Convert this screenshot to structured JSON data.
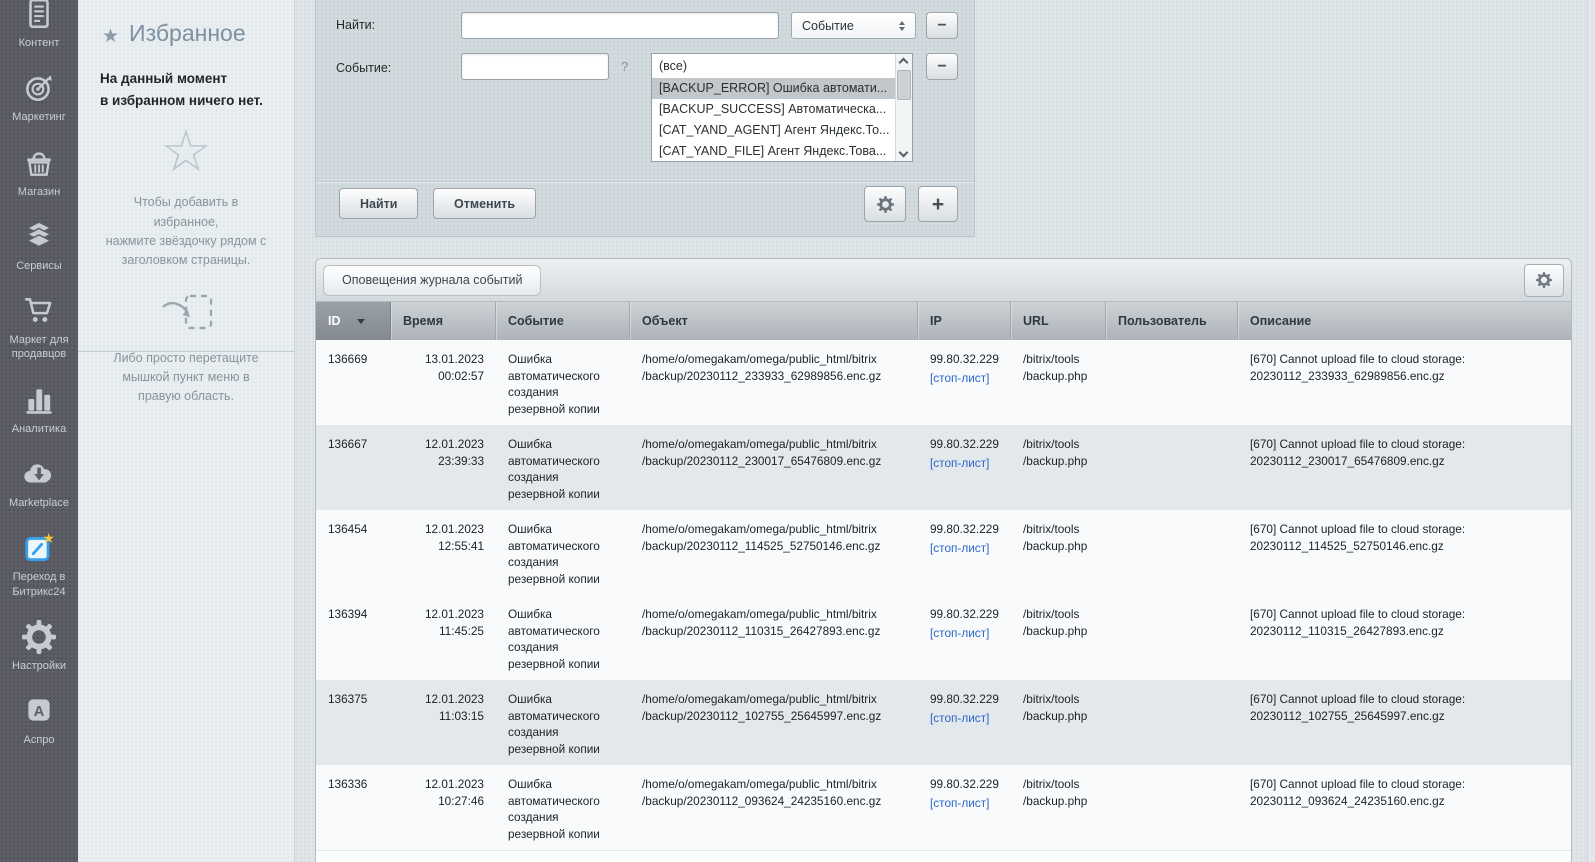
{
  "colors": {
    "sidebar_bg": "#5d5e67",
    "panel_bg": "#d4dbdf",
    "accent_blue": "#35a1ea",
    "link_blue": "#2b66c9",
    "star_yellow": "#f6c437",
    "row_shaded": "#e3e8ec"
  },
  "sidebar": {
    "items": [
      {
        "label": "Контент",
        "icon": "document-icon"
      },
      {
        "label": "Маркетинг",
        "icon": "target-icon"
      },
      {
        "label": "Магазин",
        "icon": "basket-icon"
      },
      {
        "label": "Сервисы",
        "icon": "layers-icon"
      },
      {
        "label": "Маркет для продавцов",
        "icon": "cart-icon"
      },
      {
        "label": "Аналитика",
        "icon": "bar-chart-icon"
      },
      {
        "label": "Marketplace",
        "icon": "cloud-download-icon"
      },
      {
        "label": "Переход в Битрикс24",
        "icon": "bitrix24-icon"
      },
      {
        "label": "Настройки",
        "icon": "gear-icon"
      },
      {
        "label": "Аспро",
        "icon": "aspro-icon"
      }
    ]
  },
  "favorites": {
    "title": "Избранное",
    "star_glyph": "★",
    "big_star_glyph": "☆",
    "empty_text": "На данный момент\nв избранном ничего нет.",
    "hint_star": "Чтобы добавить в избранное,\nнажмите звёздочку рядом с\nзаголовком страницы.",
    "hint_drag": "Либо просто перетащите\nмышкой пункт меню в\nправую область."
  },
  "filter": {
    "find_label": "Найти:",
    "find_value": "",
    "type_select_value": "Событие",
    "event_label": "Событие:",
    "event_value": "",
    "help_label": "?",
    "event_options": [
      "(все)",
      "[BACKUP_ERROR] Ошибка автомати...",
      "[BACKUP_SUCCESS] Автоматическа...",
      "[CAT_YAND_AGENT] Агент Яндекс.То...",
      "[CAT_YAND_FILE] Агент Яндекс.Това..."
    ],
    "selected_option_index": 1,
    "search_button": "Найти",
    "cancel_button": "Отменить",
    "minus_glyph": "−",
    "plus_glyph": "+"
  },
  "grid": {
    "tab_title": "Оповещения журнала событий",
    "columns": [
      "ID",
      "Время",
      "Событие",
      "Объект",
      "IP",
      "URL",
      "Пользователь",
      "Описание"
    ],
    "sort_column": "ID",
    "sort_direction": "desc",
    "rows": [
      {
        "id": "136669",
        "date": "13.01.2023",
        "time": "00:02:57",
        "event": "Ошибка автоматического создания резервной копии",
        "object_lines": [
          "/home/o/omegakam/omega/public_html/bitrix",
          "/backup/20230112_233933_62989856.enc.gz"
        ],
        "ip": "99.80.32.229",
        "stop_list_link": "[стоп-лист]",
        "url_lines": [
          "/bitrix/tools",
          "/backup.php"
        ],
        "user": "",
        "description_lines": [
          "[670] Cannot upload file to cloud storage:",
          "20230112_233933_62989856.enc.gz"
        ],
        "shaded": false
      },
      {
        "id": "136667",
        "date": "12.01.2023",
        "time": "23:39:33",
        "event": "Ошибка автоматического создания резервной копии",
        "object_lines": [
          "/home/o/omegakam/omega/public_html/bitrix",
          "/backup/20230112_230017_65476809.enc.gz"
        ],
        "ip": "99.80.32.229",
        "stop_list_link": "[стоп-лист]",
        "url_lines": [
          "/bitrix/tools",
          "/backup.php"
        ],
        "user": "",
        "description_lines": [
          "[670] Cannot upload file to cloud storage:",
          "20230112_230017_65476809.enc.gz"
        ],
        "shaded": true
      },
      {
        "id": "136454",
        "date": "12.01.2023",
        "time": "12:55:41",
        "event": "Ошибка автоматического создания резервной копии",
        "object_lines": [
          "/home/o/omegakam/omega/public_html/bitrix",
          "/backup/20230112_114525_52750146.enc.gz"
        ],
        "ip": "99.80.32.229",
        "stop_list_link": "[стоп-лист]",
        "url_lines": [
          "/bitrix/tools",
          "/backup.php"
        ],
        "user": "",
        "description_lines": [
          "[670] Cannot upload file to cloud storage:",
          "20230112_114525_52750146.enc.gz"
        ],
        "shaded": false
      },
      {
        "id": "136394",
        "date": "12.01.2023",
        "time": "11:45:25",
        "event": "Ошибка автоматического создания резервной копии",
        "object_lines": [
          "/home/o/omegakam/omega/public_html/bitrix",
          "/backup/20230112_110315_26427893.enc.gz"
        ],
        "ip": "99.80.32.229",
        "stop_list_link": "[стоп-лист]",
        "url_lines": [
          "/bitrix/tools",
          "/backup.php"
        ],
        "user": "",
        "description_lines": [
          "[670] Cannot upload file to cloud storage:",
          "20230112_110315_26427893.enc.gz"
        ],
        "shaded": false
      },
      {
        "id": "136375",
        "date": "12.01.2023",
        "time": "11:03:15",
        "event": "Ошибка автоматического создания резервной копии",
        "object_lines": [
          "/home/o/omegakam/omega/public_html/bitrix",
          "/backup/20230112_102755_25645997.enc.gz"
        ],
        "ip": "99.80.32.229",
        "stop_list_link": "[стоп-лист]",
        "url_lines": [
          "/bitrix/tools",
          "/backup.php"
        ],
        "user": "",
        "description_lines": [
          "[670] Cannot upload file to cloud storage:",
          "20230112_102755_25645997.enc.gz"
        ],
        "shaded": true
      },
      {
        "id": "136336",
        "date": "12.01.2023",
        "time": "10:27:46",
        "event": "Ошибка автоматического создания резервной копии",
        "object_lines": [
          "/home/o/omegakam/omega/public_html/bitrix",
          "/backup/20230112_093624_24235160.enc.gz"
        ],
        "ip": "99.80.32.229",
        "stop_list_link": "[стоп-лист]",
        "url_lines": [
          "/bitrix/tools",
          "/backup.php"
        ],
        "user": "",
        "description_lines": [
          "[670] Cannot upload file to cloud storage:",
          "20230112_093624_24235160.enc.gz"
        ],
        "shaded": false
      }
    ]
  }
}
